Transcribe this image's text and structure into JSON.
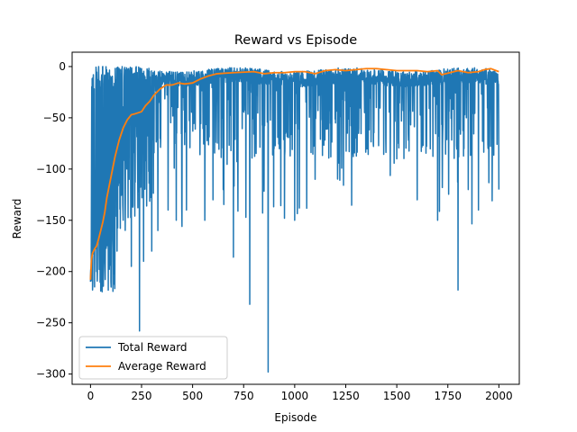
{
  "chart_data": {
    "type": "line",
    "title": "Reward vs Episode",
    "xlabel": "Episode",
    "ylabel": "Reward",
    "xlim": [
      -90,
      2100
    ],
    "ylim": [
      -310,
      14
    ],
    "xticks": [
      0,
      250,
      500,
      750,
      1000,
      1250,
      1500,
      1750,
      2000
    ],
    "yticks": [
      0,
      -50,
      -100,
      -150,
      -200,
      -250,
      -300
    ],
    "ytick_labels": [
      "0",
      "−50",
      "−100",
      "−150",
      "−200",
      "−250",
      "−300"
    ],
    "grid": false,
    "legend": {
      "position": "lower-left"
    },
    "series": [
      {
        "name": "Total Reward",
        "color": "#1f77b4",
        "description": "per-episode reward, highly variable; starts near -210, baseline rises to about 0 by episode 300 with frequent downward spikes",
        "anchor_points": [
          [
            0,
            -210
          ],
          [
            5,
            -90
          ],
          [
            10,
            -218
          ],
          [
            15,
            -78
          ],
          [
            20,
            -215
          ],
          [
            25,
            -120
          ],
          [
            30,
            -200
          ],
          [
            40,
            0
          ],
          [
            50,
            -219
          ],
          [
            60,
            0
          ],
          [
            70,
            -190
          ],
          [
            80,
            -20
          ],
          [
            100,
            -210
          ],
          [
            130,
            -180
          ],
          [
            160,
            -150
          ],
          [
            200,
            -195
          ],
          [
            240,
            -258
          ],
          [
            260,
            -190
          ],
          [
            300,
            -180
          ],
          [
            330,
            -160
          ],
          [
            380,
            -140
          ],
          [
            420,
            -150
          ],
          [
            470,
            -140
          ],
          [
            560,
            -150
          ],
          [
            600,
            -130
          ],
          [
            650,
            -120
          ],
          [
            700,
            -186
          ],
          [
            780,
            -232
          ],
          [
            870,
            -298
          ],
          [
            950,
            -148
          ],
          [
            1000,
            -150
          ],
          [
            1100,
            -110
          ],
          [
            1200,
            -55
          ],
          [
            1300,
            -70
          ],
          [
            1400,
            -40
          ],
          [
            1500,
            -90
          ],
          [
            1600,
            -130
          ],
          [
            1700,
            -150
          ],
          [
            1800,
            -218
          ],
          [
            1850,
            -120
          ],
          [
            1900,
            -140
          ],
          [
            1950,
            -50
          ],
          [
            2000,
            -120
          ]
        ]
      },
      {
        "name": "Average Reward",
        "color": "#ff7f0e",
        "description": "moving average of reward",
        "values": [
          [
            0,
            -208
          ],
          [
            5,
            -188
          ],
          [
            10,
            -182
          ],
          [
            20,
            -178
          ],
          [
            30,
            -175
          ],
          [
            40,
            -168
          ],
          [
            50,
            -160
          ],
          [
            60,
            -152
          ],
          [
            70,
            -142
          ],
          [
            80,
            -128
          ],
          [
            100,
            -108
          ],
          [
            120,
            -88
          ],
          [
            140,
            -72
          ],
          [
            160,
            -60
          ],
          [
            180,
            -52
          ],
          [
            200,
            -47
          ],
          [
            220,
            -46
          ],
          [
            250,
            -44
          ],
          [
            270,
            -38
          ],
          [
            290,
            -34
          ],
          [
            310,
            -28
          ],
          [
            340,
            -22
          ],
          [
            370,
            -18
          ],
          [
            400,
            -18
          ],
          [
            430,
            -16
          ],
          [
            460,
            -17
          ],
          [
            500,
            -16
          ],
          [
            540,
            -12
          ],
          [
            580,
            -9
          ],
          [
            620,
            -7
          ],
          [
            700,
            -6
          ],
          [
            800,
            -5
          ],
          [
            850,
            -7
          ],
          [
            900,
            -6
          ],
          [
            950,
            -6
          ],
          [
            1000,
            -5
          ],
          [
            1050,
            -5
          ],
          [
            1100,
            -7
          ],
          [
            1150,
            -4
          ],
          [
            1200,
            -3
          ],
          [
            1250,
            -4
          ],
          [
            1300,
            -3
          ],
          [
            1350,
            -2
          ],
          [
            1400,
            -2
          ],
          [
            1450,
            -3
          ],
          [
            1500,
            -4
          ],
          [
            1550,
            -4
          ],
          [
            1600,
            -4
          ],
          [
            1650,
            -5
          ],
          [
            1700,
            -4
          ],
          [
            1720,
            -8
          ],
          [
            1760,
            -6
          ],
          [
            1800,
            -4
          ],
          [
            1850,
            -6
          ],
          [
            1900,
            -5
          ],
          [
            1930,
            -3
          ],
          [
            1960,
            -2
          ],
          [
            2000,
            -5
          ]
        ]
      }
    ]
  }
}
